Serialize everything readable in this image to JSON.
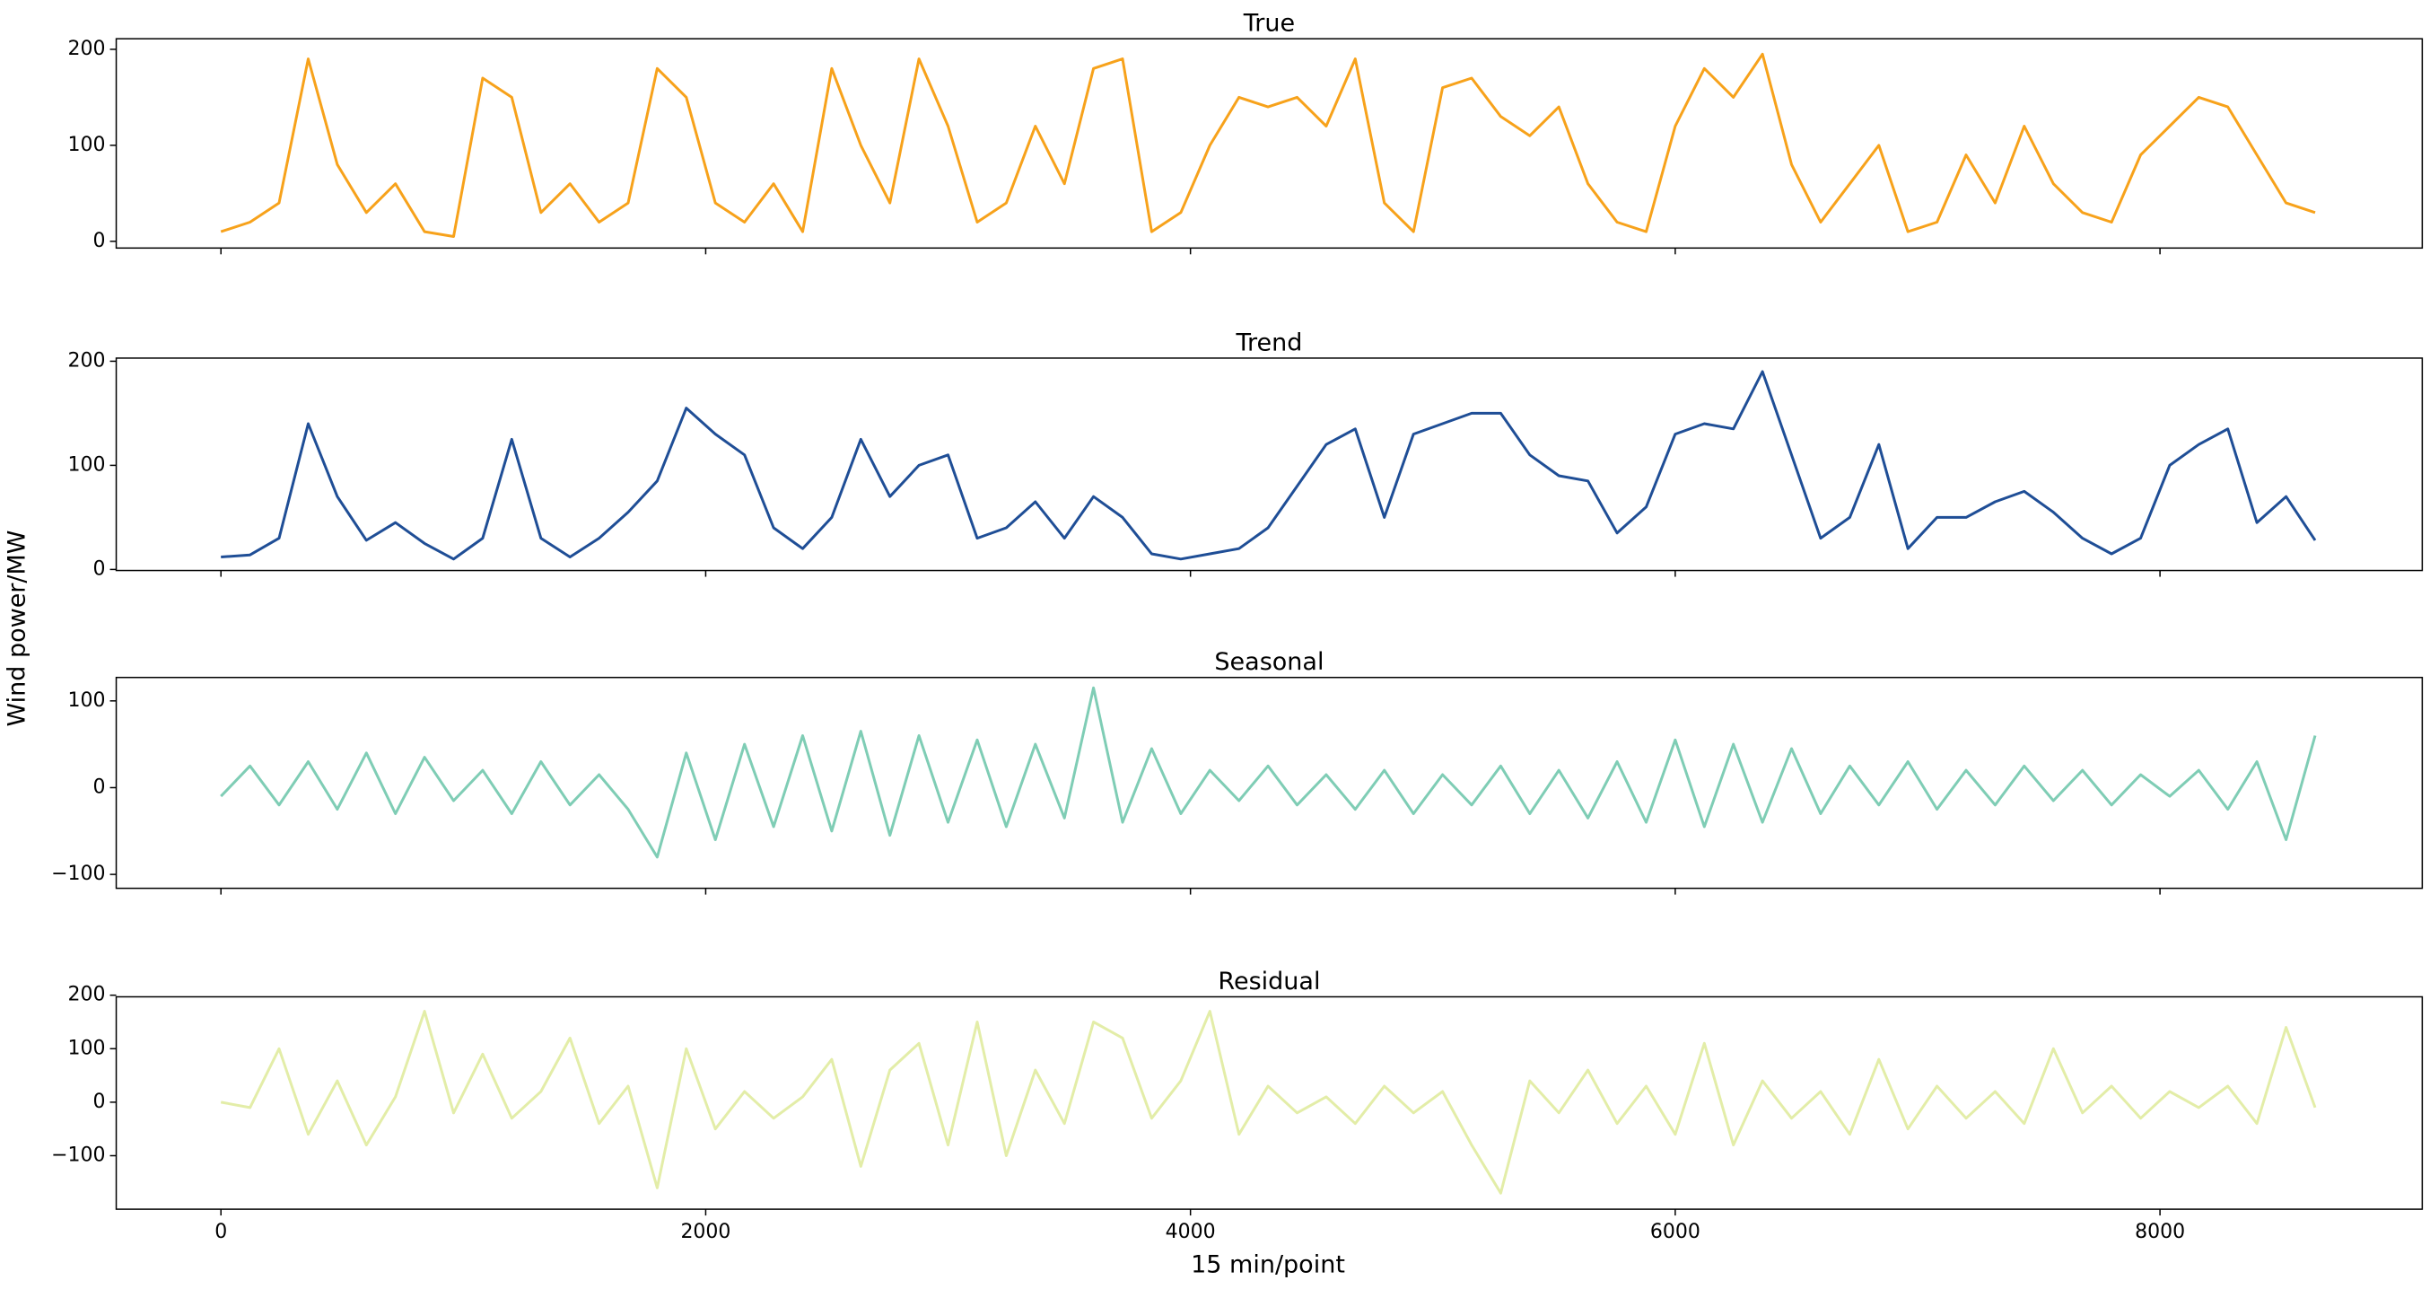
{
  "ylabel": "Wind power/MW",
  "xlabel": "15 min/point",
  "chart_data": [
    {
      "type": "line",
      "title": "True",
      "color": "#f7a21b",
      "xlim": [
        -432,
        9082
      ],
      "xticks": [
        0,
        2000,
        4000,
        6000,
        8000
      ],
      "ylim": [
        -7,
        211
      ],
      "yticks": [
        0,
        100,
        200
      ],
      "x": [
        0,
        120,
        240,
        360,
        480,
        600,
        720,
        840,
        960,
        1080,
        1200,
        1320,
        1440,
        1560,
        1680,
        1800,
        1920,
        2040,
        2160,
        2280,
        2400,
        2520,
        2640,
        2760,
        2880,
        3000,
        3120,
        3240,
        3360,
        3480,
        3600,
        3720,
        3840,
        3960,
        4080,
        4200,
        4320,
        4440,
        4560,
        4680,
        4800,
        4920,
        5040,
        5160,
        5280,
        5400,
        5520,
        5640,
        5760,
        5880,
        6000,
        6120,
        6240,
        6360,
        6480,
        6600,
        6720,
        6840,
        6960,
        7080,
        7200,
        7320,
        7440,
        7560,
        7680,
        7800,
        7920,
        8040,
        8160,
        8280,
        8400,
        8520,
        8640
      ],
      "values": [
        10,
        20,
        40,
        190,
        80,
        30,
        60,
        10,
        5,
        170,
        150,
        30,
        60,
        20,
        40,
        180,
        150,
        40,
        20,
        60,
        10,
        180,
        100,
        40,
        190,
        120,
        20,
        40,
        120,
        60,
        180,
        190,
        10,
        30,
        100,
        150,
        140,
        150,
        120,
        190,
        40,
        10,
        160,
        170,
        130,
        110,
        140,
        60,
        20,
        10,
        120,
        180,
        150,
        195,
        80,
        20,
        60,
        100,
        10,
        20,
        90,
        40,
        120,
        60,
        30,
        20,
        90,
        120,
        150,
        140,
        90,
        40,
        30
      ]
    },
    {
      "type": "line",
      "title": "Trend",
      "color": "#1f4e96",
      "xlim": [
        -432,
        9082
      ],
      "xticks": [
        0,
        2000,
        4000,
        6000,
        8000
      ],
      "ylim": [
        -1,
        203
      ],
      "yticks": [
        0,
        100,
        200
      ],
      "x": [
        0,
        120,
        240,
        360,
        480,
        600,
        720,
        840,
        960,
        1080,
        1200,
        1320,
        1440,
        1560,
        1680,
        1800,
        1920,
        2040,
        2160,
        2280,
        2400,
        2520,
        2640,
        2760,
        2880,
        3000,
        3120,
        3240,
        3360,
        3480,
        3600,
        3720,
        3840,
        3960,
        4080,
        4200,
        4320,
        4440,
        4560,
        4680,
        4800,
        4920,
        5040,
        5160,
        5280,
        5400,
        5520,
        5640,
        5760,
        5880,
        6000,
        6120,
        6240,
        6360,
        6480,
        6600,
        6720,
        6840,
        6960,
        7080,
        7200,
        7320,
        7440,
        7560,
        7680,
        7800,
        7920,
        8040,
        8160,
        8280,
        8400,
        8520,
        8640
      ],
      "values": [
        12,
        14,
        30,
        140,
        70,
        28,
        45,
        25,
        10,
        30,
        125,
        30,
        12,
        30,
        55,
        85,
        155,
        130,
        110,
        40,
        20,
        50,
        125,
        70,
        100,
        110,
        30,
        40,
        65,
        30,
        70,
        50,
        15,
        10,
        15,
        20,
        40,
        80,
        120,
        135,
        50,
        130,
        140,
        150,
        150,
        110,
        90,
        85,
        35,
        60,
        130,
        140,
        135,
        190,
        110,
        30,
        50,
        120,
        20,
        50,
        50,
        65,
        75,
        55,
        30,
        15,
        30,
        100,
        120,
        135,
        45,
        70,
        28
      ]
    },
    {
      "type": "line",
      "title": "Seasonal",
      "color": "#7fcdb5",
      "xlim": [
        -432,
        9082
      ],
      "xticks": [
        0,
        2000,
        4000,
        6000,
        8000
      ],
      "ylim": [
        -116,
        127
      ],
      "yticks": [
        {
          "value": -100,
          "label": "−100"
        },
        0,
        100
      ],
      "x": [
        0,
        120,
        240,
        360,
        480,
        600,
        720,
        840,
        960,
        1080,
        1200,
        1320,
        1440,
        1560,
        1680,
        1800,
        1920,
        2040,
        2160,
        2280,
        2400,
        2520,
        2640,
        2760,
        2880,
        3000,
        3120,
        3240,
        3360,
        3480,
        3600,
        3720,
        3840,
        3960,
        4080,
        4200,
        4320,
        4440,
        4560,
        4680,
        4800,
        4920,
        5040,
        5160,
        5280,
        5400,
        5520,
        5640,
        5760,
        5880,
        6000,
        6120,
        6240,
        6360,
        6480,
        6600,
        6720,
        6840,
        6960,
        7080,
        7200,
        7320,
        7440,
        7560,
        7680,
        7800,
        7920,
        8040,
        8160,
        8280,
        8400,
        8520,
        8640
      ],
      "values": [
        -10,
        25,
        -20,
        30,
        -25,
        40,
        -30,
        35,
        -15,
        20,
        -30,
        30,
        -20,
        15,
        -25,
        -80,
        40,
        -60,
        50,
        -45,
        60,
        -50,
        65,
        -55,
        60,
        -40,
        55,
        -45,
        50,
        -35,
        115,
        -40,
        45,
        -30,
        20,
        -15,
        25,
        -20,
        15,
        -25,
        20,
        -30,
        15,
        -20,
        25,
        -30,
        20,
        -35,
        30,
        -40,
        55,
        -45,
        50,
        -40,
        45,
        -30,
        25,
        -20,
        30,
        -25,
        20,
        -20,
        25,
        -15,
        20,
        -20,
        15,
        -10,
        20,
        -25,
        30,
        -60,
        60
      ]
    },
    {
      "type": "line",
      "title": "Residual",
      "color": "#e3eda8",
      "xlim": [
        -432,
        9082
      ],
      "xticks": [
        0,
        2000,
        4000,
        6000,
        8000
      ],
      "ylim": [
        -200,
        197
      ],
      "yticks": [
        {
          "value": -100,
          "label": "−100"
        },
        0,
        100,
        200
      ],
      "x": [
        0,
        120,
        240,
        360,
        480,
        600,
        720,
        840,
        960,
        1080,
        1200,
        1320,
        1440,
        1560,
        1680,
        1800,
        1920,
        2040,
        2160,
        2280,
        2400,
        2520,
        2640,
        2760,
        2880,
        3000,
        3120,
        3240,
        3360,
        3480,
        3600,
        3720,
        3840,
        3960,
        4080,
        4200,
        4320,
        4440,
        4560,
        4680,
        4800,
        4920,
        5040,
        5160,
        5280,
        5400,
        5520,
        5640,
        5760,
        5880,
        6000,
        6120,
        6240,
        6360,
        6480,
        6600,
        6720,
        6840,
        6960,
        7080,
        7200,
        7320,
        7440,
        7560,
        7680,
        7800,
        7920,
        8040,
        8160,
        8280,
        8400,
        8520,
        8640
      ],
      "values": [
        0,
        -10,
        100,
        -60,
        40,
        -80,
        10,
        170,
        -20,
        90,
        -30,
        20,
        120,
        -40,
        30,
        -160,
        100,
        -50,
        20,
        -30,
        10,
        80,
        -120,
        60,
        110,
        -80,
        150,
        -100,
        60,
        -40,
        150,
        120,
        -30,
        40,
        170,
        -60,
        30,
        -20,
        10,
        -40,
        30,
        -20,
        20,
        -80,
        -170,
        40,
        -20,
        60,
        -40,
        30,
        -60,
        110,
        -80,
        40,
        -30,
        20,
        -60,
        80,
        -50,
        30,
        -30,
        20,
        -40,
        100,
        -20,
        30,
        -30,
        20,
        -10,
        30,
        -40,
        140,
        -10
      ]
    }
  ]
}
